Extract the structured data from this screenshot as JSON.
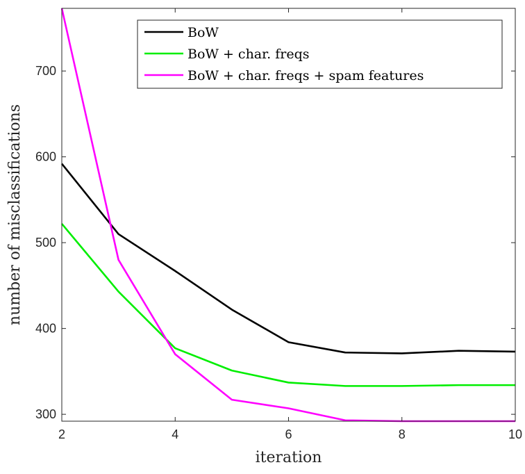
{
  "chart_data": {
    "type": "line",
    "title": "",
    "xlabel": "iteration",
    "ylabel": "number of misclassifications",
    "xlim": [
      2,
      10
    ],
    "ylim": [
      292,
      773
    ],
    "xticks": [
      2,
      4,
      6,
      8,
      10
    ],
    "yticks": [
      300,
      400,
      500,
      600,
      700
    ],
    "grid": false,
    "legend_position": "top-right",
    "x": [
      2,
      3,
      4,
      5,
      6,
      7,
      8,
      9,
      10
    ],
    "series": [
      {
        "name": "BoW",
        "color": "#000000",
        "values": [
          592,
          510,
          467,
          422,
          384,
          372,
          371,
          374,
          373
        ]
      },
      {
        "name": "BoW + char. freqs",
        "color": "#00ee00",
        "values": [
          522,
          443,
          377,
          351,
          337,
          333,
          333,
          334,
          334
        ]
      },
      {
        "name": "BoW + char. freqs + spam features",
        "color": "#ff00ff",
        "values": [
          773,
          480,
          370,
          317,
          307,
          293,
          292,
          292,
          292
        ]
      }
    ]
  }
}
